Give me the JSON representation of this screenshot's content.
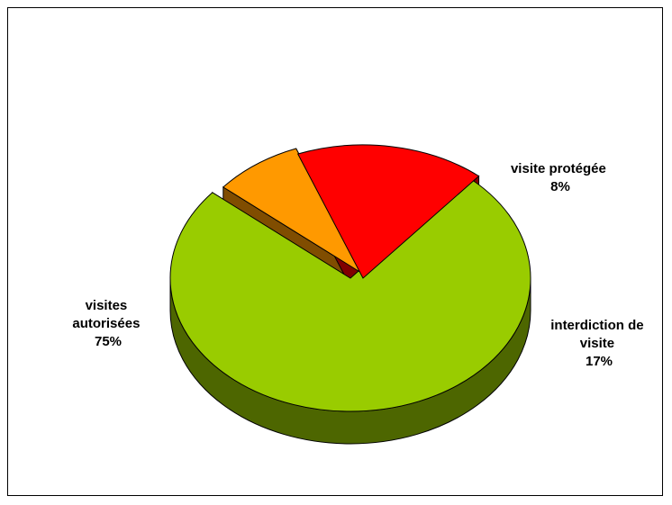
{
  "chart_data": {
    "type": "pie",
    "three_d": true,
    "title": "",
    "slices": [
      {
        "id": "autorisees",
        "label_lines": [
          "visites",
          "autorisées"
        ],
        "percent_label": "75%",
        "value": 75,
        "color": "#99CC00",
        "side_color": "#4D6600"
      },
      {
        "id": "protegee",
        "label_lines": [
          "visite protégée"
        ],
        "percent_label": "8%",
        "value": 8,
        "color": "#FF9900",
        "side_color": "#804D00"
      },
      {
        "id": "interdiction",
        "label_lines": [
          "interdiction de",
          "visite"
        ],
        "percent_label": "17%",
        "value": 17,
        "color": "#FF0000",
        "side_color": "#800000"
      }
    ],
    "legend": "none"
  }
}
